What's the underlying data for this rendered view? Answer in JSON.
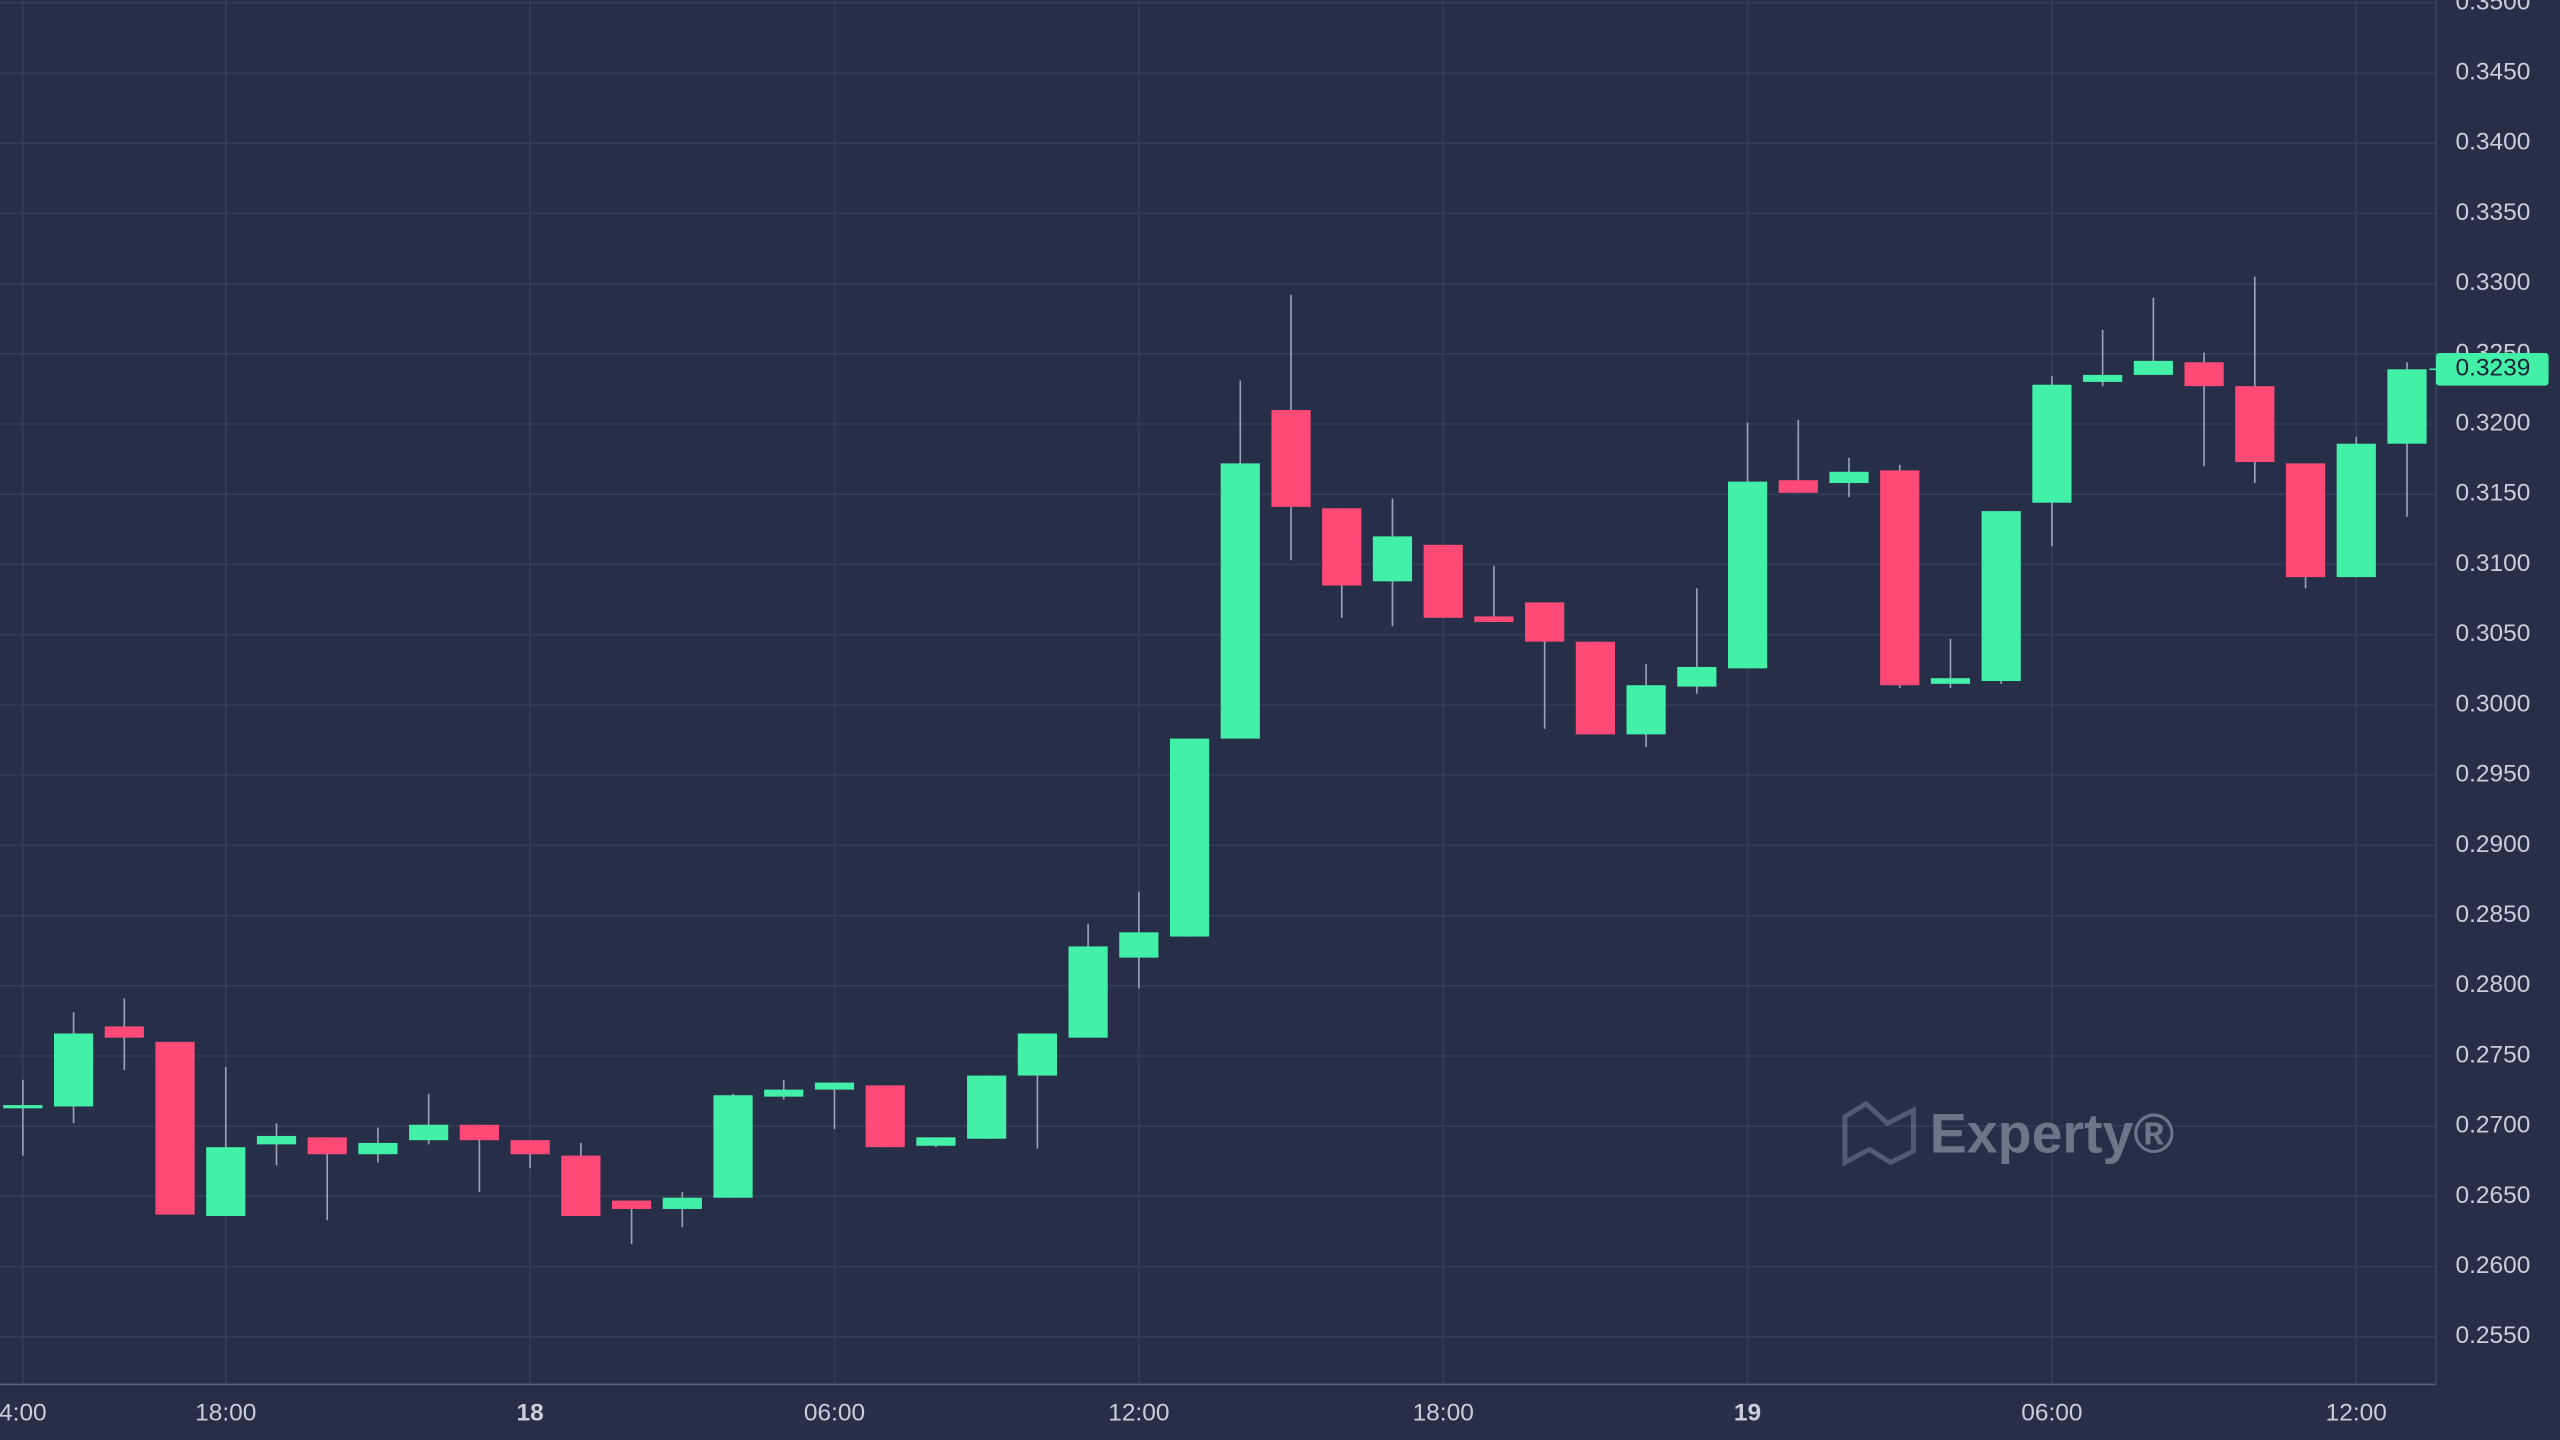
{
  "chart_data": {
    "type": "candlestick",
    "categories": [
      "4:00",
      null,
      null,
      null,
      "18:00",
      null,
      null,
      null,
      null,
      null,
      "18",
      null,
      null,
      null,
      null,
      null,
      "06:00",
      null,
      null,
      null,
      null,
      null,
      "12:00",
      null,
      null,
      null,
      null,
      null,
      "18:00",
      null,
      null,
      null,
      null,
      null,
      "19",
      null,
      null,
      null,
      null,
      null,
      "06:00",
      null,
      null,
      null,
      null,
      null,
      "12:00",
      null
    ],
    "bold_categories": [
      "18",
      "19"
    ],
    "open": [
      0.2715,
      0.2714,
      0.2771,
      0.276,
      0.2636,
      0.2687,
      0.2692,
      0.268,
      0.269,
      0.2701,
      0.269,
      0.2679,
      0.2647,
      0.2641,
      0.2649,
      0.2721,
      0.2726,
      0.2729,
      0.2686,
      0.2691,
      0.2736,
      0.2763,
      0.282,
      0.2835,
      0.2976,
      0.321,
      0.314,
      0.3088,
      0.3114,
      0.3063,
      0.3073,
      0.3045,
      0.2979,
      0.3013,
      0.3026,
      0.316,
      0.3158,
      0.3167,
      0.3015,
      0.3017,
      0.3144,
      0.323,
      0.3235,
      0.3244,
      0.3227,
      0.3172,
      0.3091,
      0.3186
    ],
    "high": [
      0.2733,
      0.2781,
      0.2791,
      0.276,
      0.2742,
      0.2702,
      0.2692,
      0.2699,
      0.2723,
      0.2701,
      0.269,
      0.2688,
      0.2647,
      0.2653,
      0.2723,
      0.2733,
      0.2731,
      0.2729,
      0.2692,
      0.2736,
      0.2766,
      0.2844,
      0.2867,
      0.2976,
      0.3231,
      0.3292,
      0.314,
      0.3147,
      0.3114,
      0.3099,
      0.3073,
      0.3045,
      0.3029,
      0.3083,
      0.3201,
      0.3203,
      0.3176,
      0.3171,
      0.3047,
      0.3138,
      0.3234,
      0.3267,
      0.329,
      0.3251,
      0.3305,
      0.3172,
      0.3191,
      0.3244
    ],
    "low": [
      0.2679,
      0.2702,
      0.274,
      0.2637,
      0.2636,
      0.2672,
      0.2633,
      0.2674,
      0.2687,
      0.2653,
      0.267,
      0.2636,
      0.2616,
      0.2628,
      0.2649,
      0.2719,
      0.2698,
      0.2685,
      0.2685,
      0.2691,
      0.2684,
      0.2763,
      0.2798,
      0.2835,
      0.2976,
      0.3103,
      0.3062,
      0.3056,
      0.3062,
      0.3059,
      0.2983,
      0.2979,
      0.297,
      0.3008,
      0.3026,
      0.3151,
      0.3148,
      0.3012,
      0.3012,
      0.3015,
      0.3113,
      0.3227,
      0.3235,
      0.317,
      0.3158,
      0.3083,
      0.3091,
      0.3134
    ],
    "close": [
      0.2715,
      0.2766,
      0.2763,
      0.2637,
      0.2685,
      0.2693,
      0.268,
      0.2688,
      0.2701,
      0.269,
      0.268,
      0.2636,
      0.2641,
      0.2649,
      0.2722,
      0.2726,
      0.2731,
      0.2685,
      0.2692,
      0.2736,
      0.2766,
      0.2828,
      0.2838,
      0.2976,
      0.3172,
      0.3141,
      0.3085,
      0.312,
      0.3062,
      0.3059,
      0.3045,
      0.2979,
      0.3014,
      0.3027,
      0.3159,
      0.3151,
      0.3166,
      0.3014,
      0.3019,
      0.3138,
      0.3228,
      0.3235,
      0.3245,
      0.3227,
      0.3173,
      0.3091,
      0.3186,
      0.3239
    ],
    "up_color": "#42f0a8",
    "down_color": "#ff4a77",
    "ylim": [
      0.2516,
      0.3502
    ],
    "yticks": [
      {
        "value": 0.35,
        "label": "0.3500"
      },
      {
        "value": 0.345,
        "label": "0.3450"
      },
      {
        "value": 0.34,
        "label": "0.3400"
      },
      {
        "value": 0.335,
        "label": "0.3350"
      },
      {
        "value": 0.33,
        "label": "0.3300"
      },
      {
        "value": 0.325,
        "label": "0.3250"
      },
      {
        "value": 0.32,
        "label": "0.3200"
      },
      {
        "value": 0.315,
        "label": "0.3150"
      },
      {
        "value": 0.31,
        "label": "0.3100"
      },
      {
        "value": 0.305,
        "label": "0.3050"
      },
      {
        "value": 0.3,
        "label": "0.3000"
      },
      {
        "value": 0.295,
        "label": "0.2950"
      },
      {
        "value": 0.29,
        "label": "0.2900"
      },
      {
        "value": 0.285,
        "label": "0.2850"
      },
      {
        "value": 0.28,
        "label": "0.2800"
      },
      {
        "value": 0.275,
        "label": "0.2750"
      },
      {
        "value": 0.27,
        "label": "0.2700"
      },
      {
        "value": 0.265,
        "label": "0.2650"
      },
      {
        "value": 0.26,
        "label": "0.2600"
      },
      {
        "value": 0.255,
        "label": "0.2550"
      }
    ],
    "last_price": {
      "value": 0.3239,
      "label": "0.3239"
    },
    "grid": true,
    "watermark": "Experty®"
  }
}
